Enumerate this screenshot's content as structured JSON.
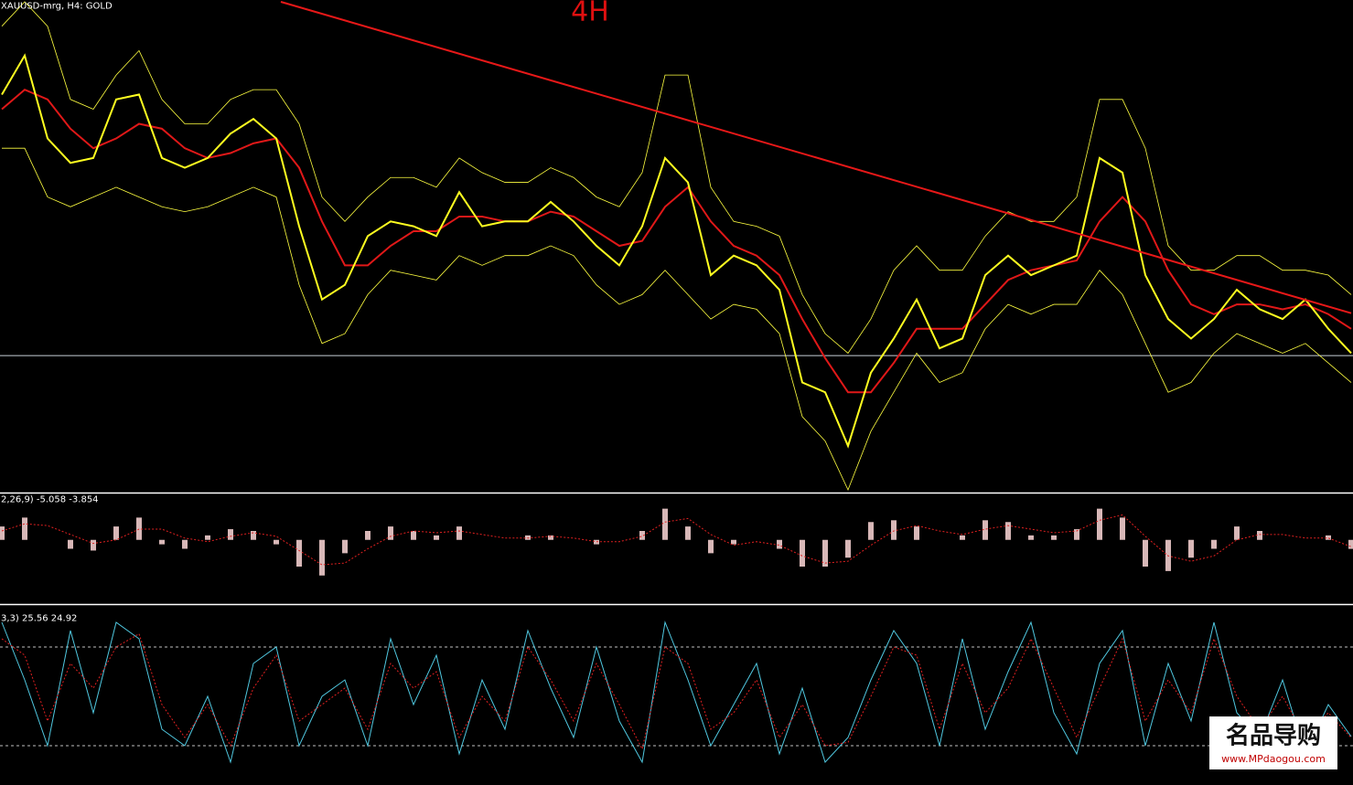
{
  "chart_data": [
    {
      "type": "line",
      "title": "XAUUSD-mrg, H4:  GOLD",
      "annotation": "4H",
      "annotation_color": "#e01010",
      "ylim": [
        0,
        100
      ],
      "xlim": [
        0,
        59
      ],
      "hline": 27.5,
      "hline_color": "#c8d0d8",
      "trendline": {
        "x": [
          12.2,
          59
        ],
        "values": [
          100,
          36.2
        ],
        "color": "#e81818"
      },
      "series": [
        {
          "color": "#ffff40",
          "width": 0.8,
          "values": [
            95,
            100,
            95,
            80,
            78,
            85,
            90,
            80,
            75,
            75,
            80,
            82,
            82,
            75,
            60,
            55,
            60,
            64,
            64,
            62,
            68,
            65,
            63,
            63,
            66,
            64,
            60,
            58,
            65,
            85,
            85,
            62,
            55,
            54,
            52,
            40,
            32,
            28,
            35,
            45,
            50,
            45,
            45,
            52,
            57,
            55,
            55,
            60,
            80,
            80,
            70,
            50,
            45,
            45,
            48,
            48,
            45,
            45,
            44,
            40
          ]
        },
        {
          "color": "#ffff40",
          "width": 0.8,
          "values": [
            70,
            70,
            60,
            58,
            60,
            62,
            60,
            58,
            57,
            58,
            60,
            62,
            60,
            42,
            30,
            32,
            40,
            45,
            44,
            43,
            48,
            46,
            48,
            48,
            50,
            48,
            42,
            38,
            40,
            45,
            40,
            35,
            38,
            37,
            32,
            15,
            10,
            0,
            12,
            20,
            28,
            22,
            24,
            33,
            38,
            36,
            38,
            38,
            45,
            40,
            30,
            20,
            22,
            28,
            32,
            30,
            28,
            30,
            26,
            22
          ]
        },
        {
          "color": "#e01818",
          "width": 2,
          "values": [
            78,
            82,
            80,
            74,
            70,
            72,
            75,
            74,
            70,
            68,
            69,
            71,
            72,
            66,
            55,
            46,
            46,
            50,
            53,
            53,
            56,
            56,
            55,
            55,
            57,
            56,
            53,
            50,
            51,
            58,
            62,
            55,
            50,
            48,
            44,
            35,
            27,
            20,
            20,
            26,
            33,
            33,
            33,
            38,
            43,
            45,
            46,
            47,
            55,
            60,
            55,
            45,
            38,
            36,
            38,
            38,
            37,
            38,
            36,
            33
          ]
        },
        {
          "color": "#ffff20",
          "width": 2,
          "values": [
            81,
            89,
            72,
            67,
            68,
            80,
            81,
            68,
            66,
            68,
            73,
            76,
            72,
            54,
            39,
            42,
            52,
            55,
            54,
            52,
            61,
            54,
            55,
            55,
            59,
            55,
            50,
            46,
            54,
            68,
            63,
            44,
            48,
            46,
            41,
            22,
            20,
            9,
            24,
            31,
            39,
            29,
            31,
            44,
            48,
            44,
            46,
            48,
            68,
            65,
            44,
            35,
            31,
            35,
            41,
            37,
            35,
            39,
            33,
            28
          ]
        }
      ]
    },
    {
      "type": "macd",
      "title": "2,26,9) -5.058 -3.854",
      "ylim": [
        -35,
        25
      ],
      "xlim": [
        0,
        59
      ],
      "series": [
        {
          "style": "bar",
          "color": "#d8b8b8",
          "values": [
            7.5,
            12.5,
            0,
            -5,
            -6,
            7.5,
            12.5,
            -2.5,
            -5,
            2.5,
            6,
            5,
            -2.5,
            -15,
            -20,
            -7.5,
            5,
            7.5,
            5,
            2.5,
            7.5,
            0,
            0,
            2.5,
            2.5,
            0,
            -2.5,
            0,
            5,
            17.5,
            7.5,
            -7.5,
            -2.5,
            0,
            -5,
            -15,
            -15,
            -10,
            10,
            11,
            7.5,
            0,
            2.5,
            11,
            10,
            2.5,
            2.5,
            6,
            17.5,
            12.5,
            -15,
            -17.5,
            -10,
            -5,
            7.5,
            5,
            0,
            0,
            2.5,
            -5.058
          ]
        },
        {
          "style": "dotted",
          "color": "#e02020",
          "values": [
            5,
            9,
            8,
            3,
            -2,
            0,
            6,
            6,
            1,
            -1,
            2,
            4,
            2,
            -6,
            -14,
            -13,
            -5,
            2,
            5,
            4,
            5,
            3,
            1,
            1,
            2,
            1,
            -1,
            -1,
            2,
            10,
            12,
            3,
            -3,
            -1,
            -3,
            -9,
            -13,
            -12,
            -3,
            5,
            8,
            5,
            3,
            6,
            8,
            6,
            4,
            5,
            11,
            14,
            2,
            -9,
            -12,
            -9,
            0,
            3,
            3,
            1,
            1,
            -3.854
          ]
        }
      ]
    },
    {
      "type": "line",
      "title": "3,3) 25.56 24.92",
      "ylim": [
        0,
        100
      ],
      "xlim": [
        0,
        59
      ],
      "levels": [
        20,
        80
      ],
      "level_color": "#c0c0c0",
      "series": [
        {
          "style": "solid",
          "color": "#50c8e0",
          "width": 1,
          "values": [
            95,
            60,
            20,
            90,
            40,
            95,
            85,
            30,
            20,
            50,
            10,
            70,
            80,
            20,
            50,
            60,
            20,
            85,
            45,
            75,
            15,
            60,
            30,
            90,
            55,
            25,
            80,
            35,
            10,
            95,
            60,
            20,
            45,
            70,
            15,
            55,
            10,
            25,
            60,
            90,
            70,
            20,
            85,
            30,
            65,
            95,
            40,
            15,
            70,
            90,
            20,
            70,
            35,
            95,
            40,
            25,
            60,
            15,
            45,
            25.56
          ]
        },
        {
          "style": "dotted",
          "color": "#e02020",
          "width": 1,
          "values": [
            85,
            75,
            35,
            70,
            55,
            80,
            88,
            45,
            25,
            45,
            20,
            55,
            75,
            35,
            45,
            55,
            30,
            70,
            55,
            65,
            25,
            50,
            35,
            80,
            60,
            35,
            70,
            45,
            18,
            80,
            70,
            30,
            40,
            60,
            25,
            45,
            20,
            22,
            50,
            80,
            75,
            30,
            70,
            40,
            55,
            85,
            55,
            25,
            55,
            85,
            35,
            60,
            40,
            85,
            50,
            30,
            50,
            25,
            40,
            24.92
          ]
        }
      ]
    }
  ],
  "watermark": {
    "brand": "名品导购",
    "url": "www.MPdaogou.com"
  }
}
